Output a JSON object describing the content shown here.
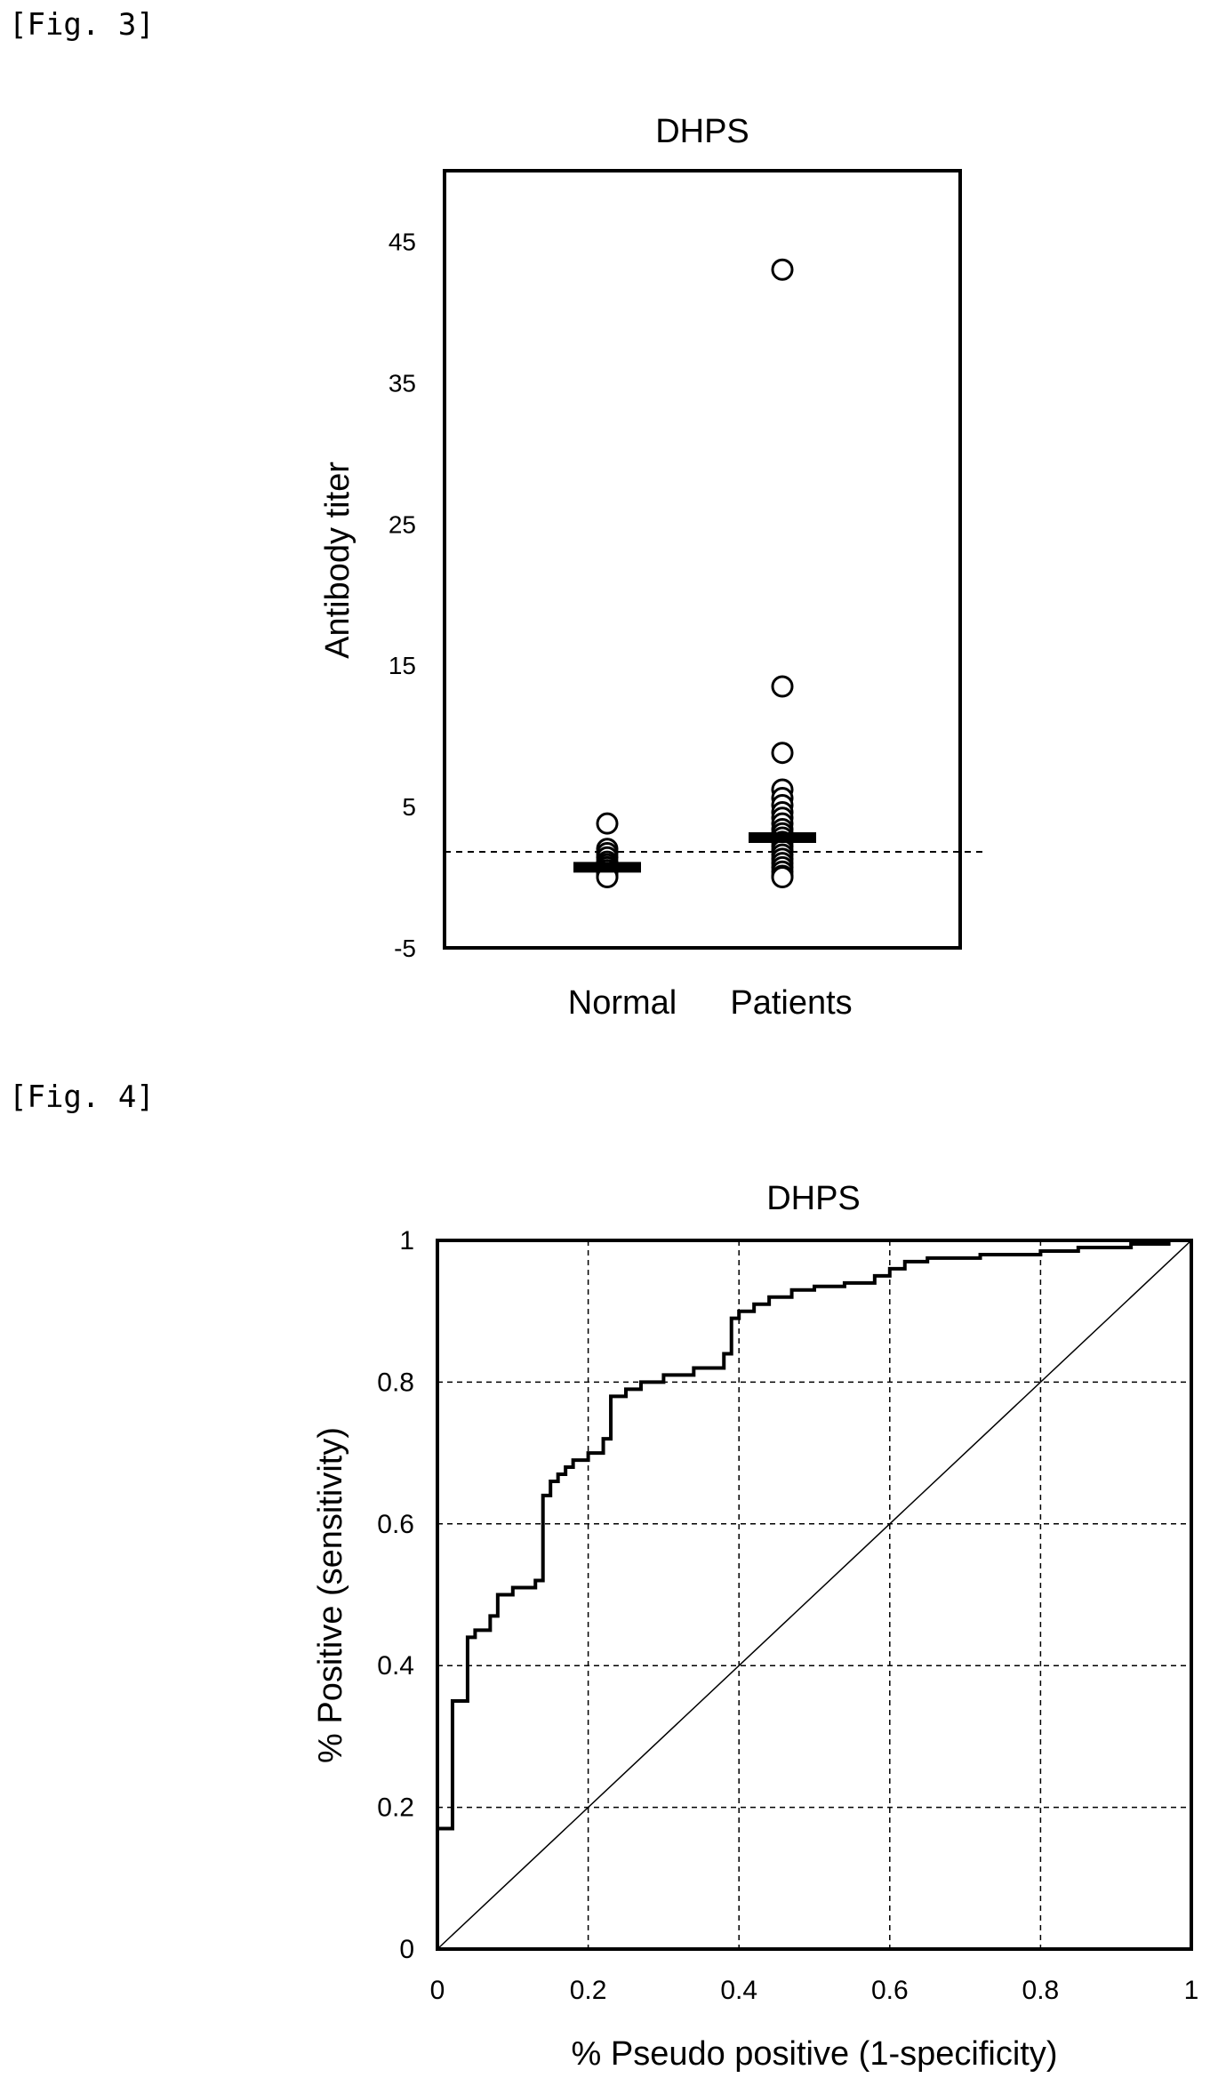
{
  "figures": {
    "fig3_label": "[Fig. 3]",
    "fig4_label": "[Fig. 4]"
  },
  "chart_data": [
    {
      "type": "scatter",
      "title": "DHPS",
      "ylabel": "Antibody titer",
      "xlabel": "",
      "categories": [
        "Normal",
        "Patients"
      ],
      "ylim": [
        -5,
        50
      ],
      "yticks": [
        -5,
        5,
        15,
        25,
        35,
        45
      ],
      "cutoff_line": 1.8,
      "grid": false,
      "series": [
        {
          "category": "Normal",
          "mean": 0.7,
          "points": [
            3.8,
            2.0,
            1.7,
            1.4,
            1.1,
            0.9,
            0.7,
            0.5,
            0.3,
            0.1,
            0.0
          ]
        },
        {
          "category": "Patients",
          "mean": 2.8,
          "points": [
            43.0,
            13.5,
            8.8,
            6.2,
            5.6,
            5.1,
            4.6,
            4.2,
            3.8,
            3.4,
            3.1,
            2.8,
            2.5,
            2.2,
            1.9,
            1.6,
            1.3,
            1.0,
            0.7,
            0.4,
            0.1,
            0.0
          ]
        }
      ]
    },
    {
      "type": "line",
      "title": "DHPS",
      "xlabel": "% Pseudo positive (1-specificity)",
      "ylabel": "% Positive (sensitivity)",
      "xlim": [
        0,
        1
      ],
      "ylim": [
        0,
        1
      ],
      "xticks": [
        "0",
        "0.2",
        "0.4",
        "0.6",
        "0.8",
        "1"
      ],
      "yticks": [
        "0",
        "0.2",
        "0.4",
        "0.6",
        "0.8",
        "1"
      ],
      "grid": true,
      "series": [
        {
          "role": "roc",
          "x": [
            0,
            0,
            0.02,
            0.02,
            0.04,
            0.04,
            0.05,
            0.05,
            0.07,
            0.07,
            0.08,
            0.08,
            0.1,
            0.1,
            0.13,
            0.13,
            0.14,
            0.14,
            0.15,
            0.15,
            0.16,
            0.16,
            0.17,
            0.17,
            0.18,
            0.18,
            0.2,
            0.2,
            0.22,
            0.22,
            0.23,
            0.23,
            0.25,
            0.25,
            0.27,
            0.27,
            0.3,
            0.3,
            0.34,
            0.34,
            0.38,
            0.38,
            0.39,
            0.39,
            0.4,
            0.4,
            0.42,
            0.42,
            0.44,
            0.44,
            0.47,
            0.47,
            0.5,
            0.5,
            0.54,
            0.54,
            0.58,
            0.58,
            0.6,
            0.6,
            0.62,
            0.62,
            0.65,
            0.65,
            0.72,
            0.72,
            0.8,
            0.8,
            0.85,
            0.85,
            0.92,
            0.92,
            0.97,
            0.97,
            1.0
          ],
          "y": [
            0,
            0.17,
            0.17,
            0.35,
            0.35,
            0.44,
            0.44,
            0.45,
            0.45,
            0.47,
            0.47,
            0.5,
            0.5,
            0.51,
            0.51,
            0.52,
            0.52,
            0.64,
            0.64,
            0.66,
            0.66,
            0.67,
            0.67,
            0.68,
            0.68,
            0.69,
            0.69,
            0.7,
            0.7,
            0.72,
            0.72,
            0.78,
            0.78,
            0.79,
            0.79,
            0.8,
            0.8,
            0.81,
            0.81,
            0.82,
            0.82,
            0.84,
            0.84,
            0.89,
            0.89,
            0.9,
            0.9,
            0.91,
            0.91,
            0.92,
            0.92,
            0.93,
            0.93,
            0.935,
            0.935,
            0.94,
            0.94,
            0.95,
            0.95,
            0.96,
            0.96,
            0.97,
            0.97,
            0.975,
            0.975,
            0.98,
            0.98,
            0.985,
            0.985,
            0.99,
            0.99,
            0.995,
            0.995,
            1.0,
            1.0
          ]
        },
        {
          "role": "reference",
          "x": [
            0,
            1
          ],
          "y": [
            0,
            1
          ]
        }
      ]
    }
  ]
}
